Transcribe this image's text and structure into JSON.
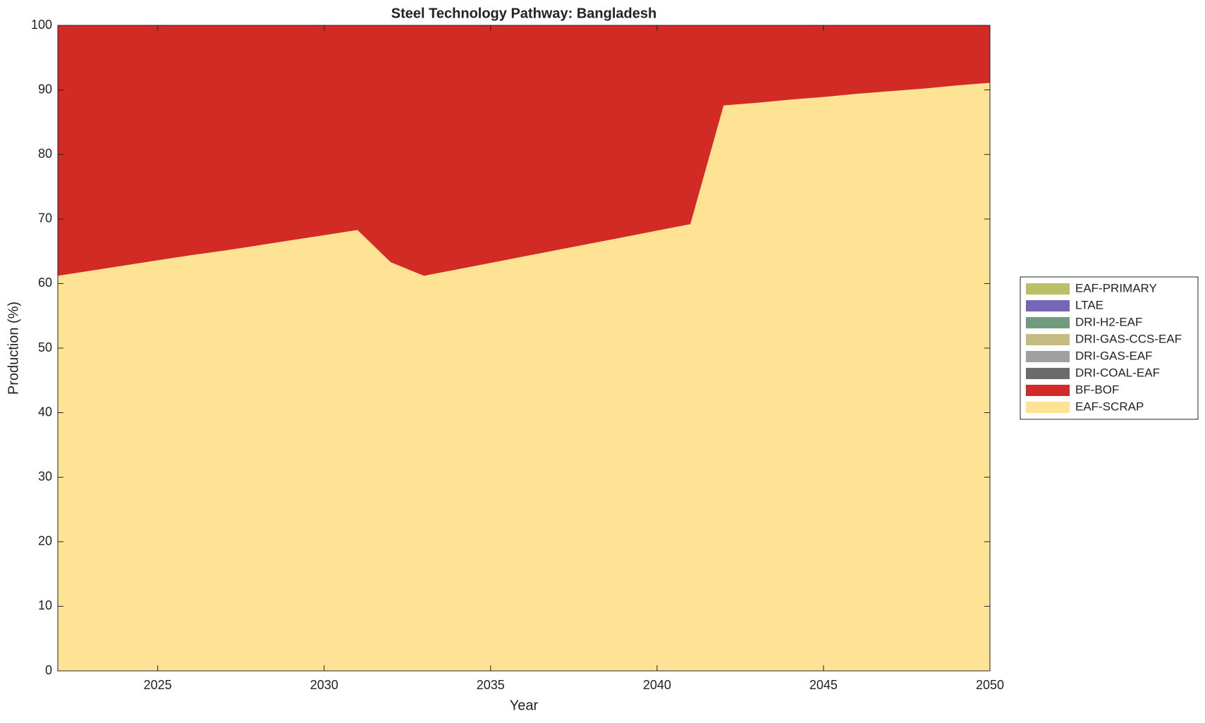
{
  "chart_data": {
    "type": "stacked_area",
    "title": "Steel Technology Pathway: Bangladesh",
    "xlabel": "Year",
    "ylabel": "Production (%)",
    "x": [
      2022,
      2023,
      2024,
      2025,
      2026,
      2027,
      2028,
      2029,
      2030,
      2031,
      2032,
      2033,
      2034,
      2035,
      2036,
      2037,
      2038,
      2039,
      2040,
      2041,
      2042,
      2043,
      2044,
      2045,
      2046,
      2047,
      2048,
      2049,
      2050
    ],
    "series": [
      {
        "name": "EAF-SCRAP",
        "color": "#fde393",
        "values": [
          61.2,
          62.0,
          62.8,
          63.6,
          64.4,
          65.1,
          65.9,
          66.7,
          67.5,
          68.3,
          63.3,
          61.2,
          62.2,
          63.2,
          64.2,
          65.2,
          66.2,
          67.2,
          68.2,
          69.2,
          87.6,
          88.0,
          88.5,
          88.9,
          89.4,
          89.8,
          90.2,
          90.7,
          91.1
        ]
      },
      {
        "name": "BF-BOF",
        "color": "#d22a24",
        "values": [
          38.8,
          38.0,
          37.2,
          36.4,
          35.6,
          34.9,
          34.1,
          33.3,
          32.5,
          31.7,
          36.7,
          38.8,
          37.8,
          36.8,
          35.8,
          34.8,
          33.8,
          32.8,
          31.8,
          30.8,
          12.4,
          12.0,
          11.5,
          11.1,
          10.6,
          10.2,
          9.8,
          9.3,
          8.9
        ]
      },
      {
        "name": "DRI-COAL-EAF",
        "color": "#6b6b6b",
        "values": [
          0,
          0,
          0,
          0,
          0,
          0,
          0,
          0,
          0,
          0,
          0,
          0,
          0,
          0,
          0,
          0,
          0,
          0,
          0,
          0,
          0,
          0,
          0,
          0,
          0,
          0,
          0,
          0,
          0
        ]
      },
      {
        "name": "DRI-GAS-EAF",
        "color": "#a0a0a0",
        "values": [
          0,
          0,
          0,
          0,
          0,
          0,
          0,
          0,
          0,
          0,
          0,
          0,
          0,
          0,
          0,
          0,
          0,
          0,
          0,
          0,
          0,
          0,
          0,
          0,
          0,
          0,
          0,
          0,
          0
        ]
      },
      {
        "name": "DRI-GAS-CCS-EAF",
        "color": "#c4bc80",
        "values": [
          0,
          0,
          0,
          0,
          0,
          0,
          0,
          0,
          0,
          0,
          0,
          0,
          0,
          0,
          0,
          0,
          0,
          0,
          0,
          0,
          0,
          0,
          0,
          0,
          0,
          0,
          0,
          0,
          0
        ]
      },
      {
        "name": "DRI-H2-EAF",
        "color": "#739a7e",
        "values": [
          0,
          0,
          0,
          0,
          0,
          0,
          0,
          0,
          0,
          0,
          0,
          0,
          0,
          0,
          0,
          0,
          0,
          0,
          0,
          0,
          0,
          0,
          0,
          0,
          0,
          0,
          0,
          0,
          0
        ]
      },
      {
        "name": "LTAE",
        "color": "#7566b8",
        "values": [
          0,
          0,
          0,
          0,
          0,
          0,
          0,
          0,
          0,
          0,
          0,
          0,
          0,
          0,
          0,
          0,
          0,
          0,
          0,
          0,
          0,
          0,
          0,
          0,
          0,
          0,
          0,
          0,
          0
        ]
      },
      {
        "name": "EAF-PRIMARY",
        "color": "#b9c068",
        "values": [
          0,
          0,
          0,
          0,
          0,
          0,
          0,
          0,
          0,
          0,
          0,
          0,
          0,
          0,
          0,
          0,
          0,
          0,
          0,
          0,
          0,
          0,
          0,
          0,
          0,
          0,
          0,
          0,
          0
        ]
      }
    ],
    "xlim": [
      2022,
      2050
    ],
    "xticks": [
      2025,
      2030,
      2035,
      2040,
      2045,
      2050
    ],
    "ylim": [
      0,
      100
    ],
    "yticks": [
      0,
      10,
      20,
      30,
      40,
      50,
      60,
      70,
      80,
      90,
      100
    ],
    "legend": "right"
  }
}
